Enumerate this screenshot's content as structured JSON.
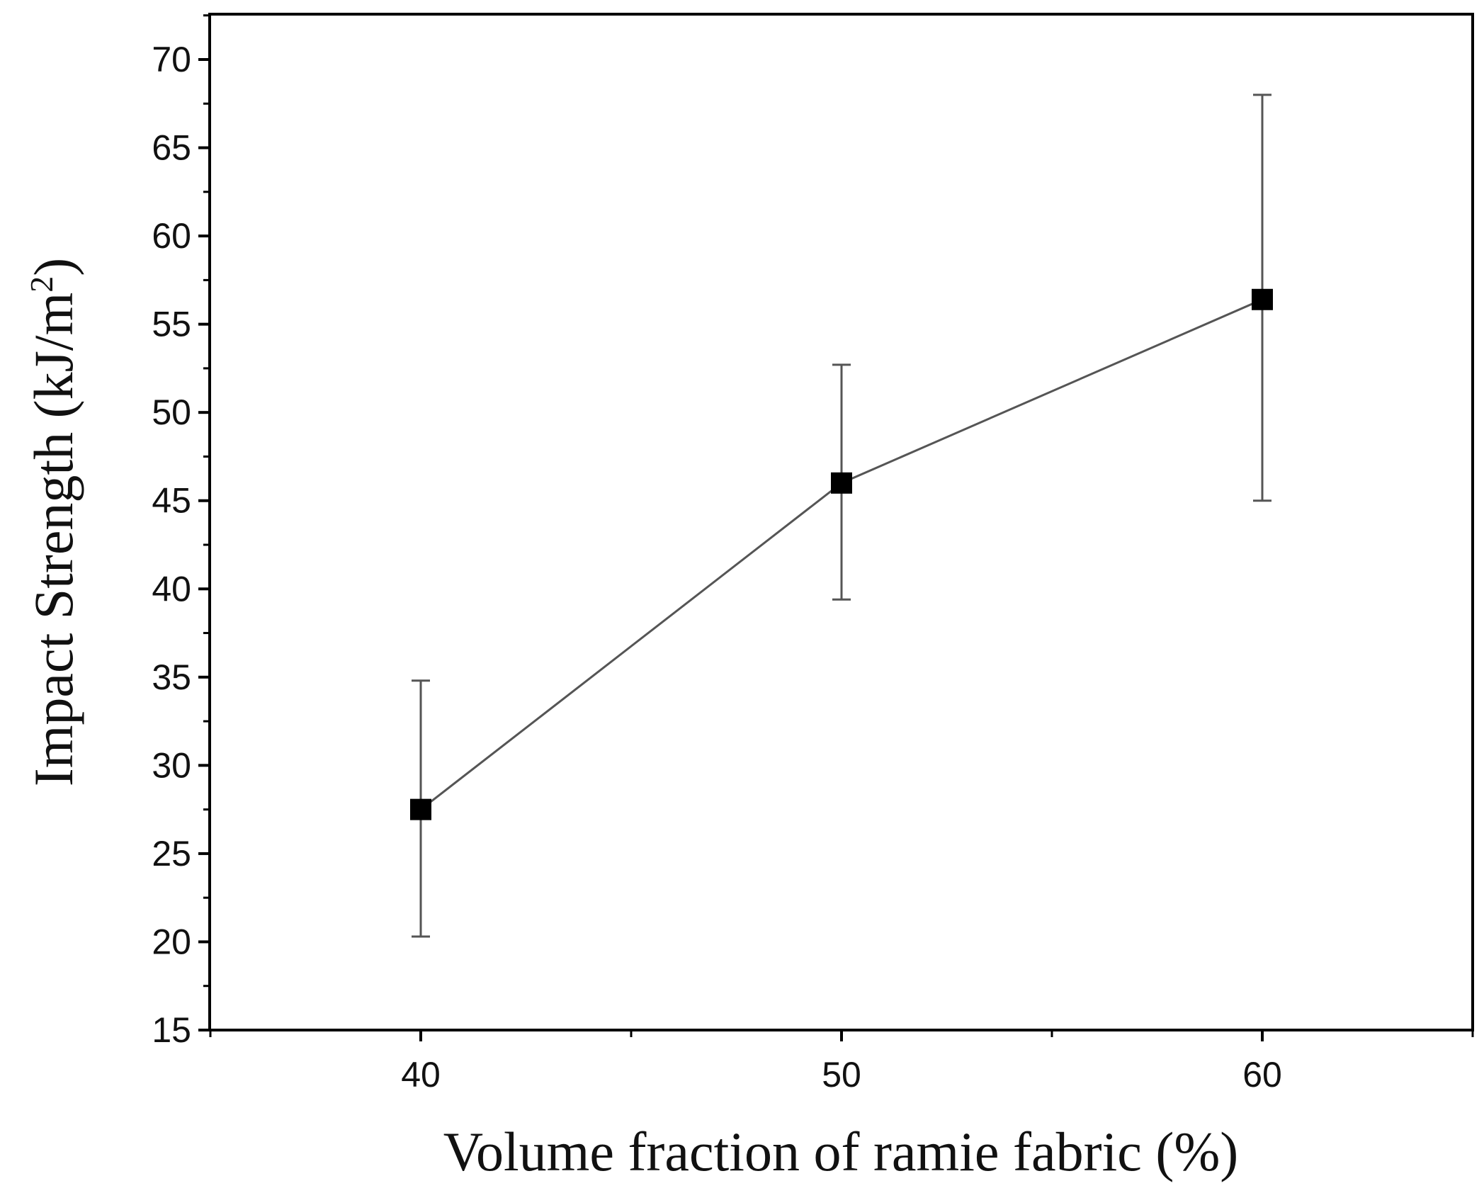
{
  "chart_data": {
    "type": "line",
    "title": "",
    "xlabel": "Volume fraction of ramie fabric (%)",
    "ylabel_main": "Impact Strength (kJ/m",
    "ylabel_sup": "2",
    "ylabel_end": ")",
    "xlim": [
      35,
      65
    ],
    "ylim": [
      15,
      71
    ],
    "x_ticks": [
      40,
      50,
      60
    ],
    "x_tick_labels": [
      "40",
      "50",
      "60"
    ],
    "x_minor_ticks": [
      35,
      45,
      55,
      65
    ],
    "y_ticks": [
      15,
      20,
      25,
      30,
      35,
      40,
      45,
      50,
      55,
      60,
      65,
      70
    ],
    "y_tick_labels": [
      "15",
      "20",
      "25",
      "30",
      "35",
      "40",
      "45",
      "50",
      "55",
      "60",
      "65",
      "70"
    ],
    "grid": false,
    "legend": "none",
    "marker": "square",
    "line_color": "#555555",
    "marker_color": "#000000",
    "series": [
      {
        "x": [
          40,
          50,
          60
        ],
        "y": [
          27.5,
          46.0,
          56.4
        ],
        "error_low": [
          20.3,
          39.4,
          45.0
        ],
        "error_high": [
          34.8,
          52.7,
          68.0
        ]
      }
    ]
  }
}
